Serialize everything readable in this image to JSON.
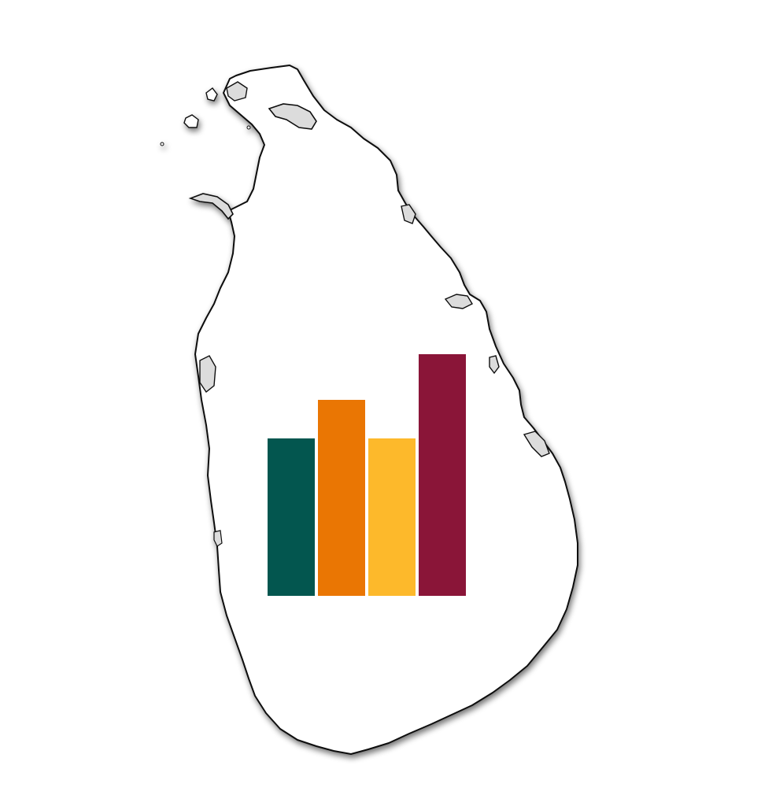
{
  "logo": {
    "name": "sri-lanka-map-bar-chart",
    "map_fill": "#ffffff",
    "map_stroke": "#111111",
    "lagoon_fill": "#dcdcdc",
    "shadow_color": "#8a8a8a",
    "bars": [
      {
        "name": "green-bar",
        "color": "#03564F",
        "value": 0.65
      },
      {
        "name": "orange-bar",
        "color": "#EA7603",
        "value": 0.81
      },
      {
        "name": "yellow-bar",
        "color": "#FDB92B",
        "value": 0.65
      },
      {
        "name": "maroon-bar",
        "color": "#8A1538",
        "value": 1.0
      }
    ]
  }
}
